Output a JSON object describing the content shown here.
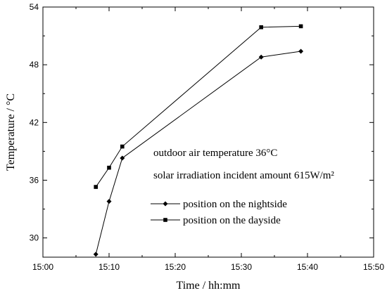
{
  "chart_data": {
    "type": "line",
    "xlabel": "Time / hh:mm",
    "ylabel": "Temperature / °C",
    "xlim": [
      "15:00",
      "15:50"
    ],
    "ylim": [
      28,
      54
    ],
    "x_ticks": [
      "15:00",
      "15:10",
      "15:20",
      "15:30",
      "15:40",
      "15:50"
    ],
    "y_ticks": [
      "30",
      "36",
      "42",
      "48",
      "54"
    ],
    "grid": false,
    "legend_position": "center-right",
    "annotations": [
      "outdoor air temperature 36°C",
      "solar irradiation incident amount 615W/m²"
    ],
    "series": [
      {
        "name": "position on the nightside",
        "marker": "diamond",
        "color": "#000000",
        "x": [
          "15:08",
          "15:10",
          "15:12",
          "15:33",
          "15:39"
        ],
        "y": [
          28.3,
          33.8,
          38.3,
          48.8,
          49.4
        ]
      },
      {
        "name": "position on the dayside",
        "marker": "square",
        "color": "#000000",
        "x": [
          "15:08",
          "15:10",
          "15:12",
          "15:33",
          "15:39"
        ],
        "y": [
          35.3,
          37.3,
          39.5,
          51.9,
          52.0
        ]
      }
    ]
  }
}
